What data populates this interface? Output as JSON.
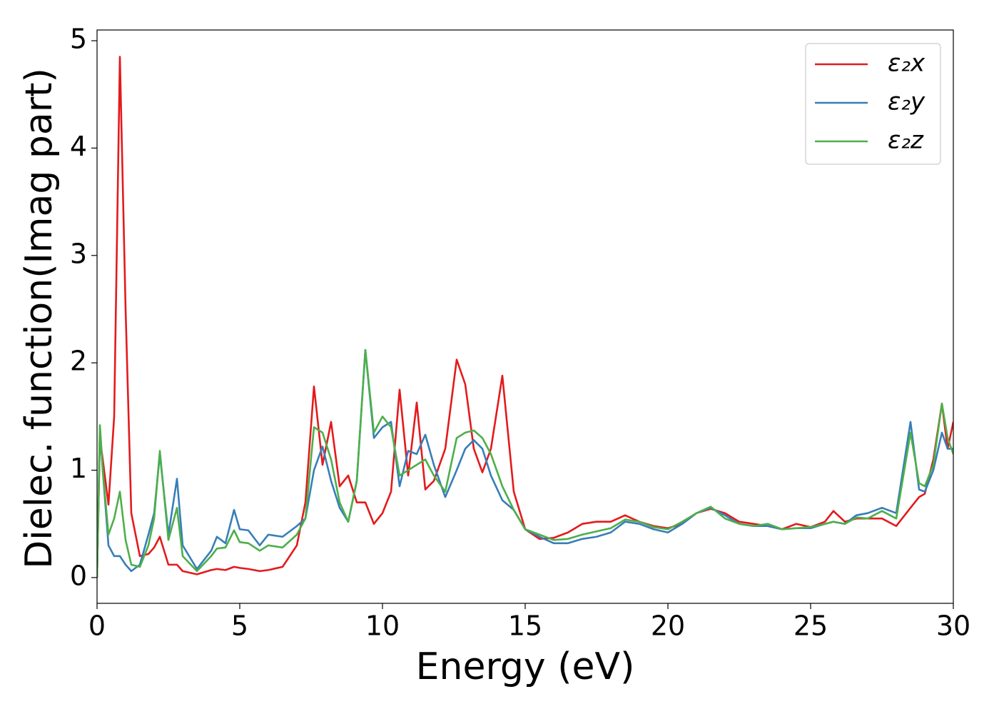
{
  "chart_data": {
    "type": "line",
    "xlabel": "Energy (eV)",
    "ylabel": "Dielec. function(Imag part)",
    "x": [
      0,
      0.1,
      0.2,
      0.4,
      0.6,
      0.8,
      1.0,
      1.2,
      1.5,
      1.8,
      2.0,
      2.2,
      2.5,
      2.8,
      3.0,
      3.5,
      4.0,
      4.2,
      4.5,
      4.8,
      5.0,
      5.3,
      5.7,
      6.0,
      6.5,
      7.0,
      7.3,
      7.6,
      7.9,
      8.2,
      8.5,
      8.8,
      9.1,
      9.4,
      9.7,
      10.0,
      10.3,
      10.6,
      10.9,
      11.2,
      11.5,
      11.8,
      12.2,
      12.6,
      12.9,
      13.2,
      13.5,
      13.8,
      14.2,
      14.6,
      15.0,
      15.5,
      16.0,
      16.5,
      17.0,
      17.5,
      18.0,
      18.5,
      19.0,
      19.5,
      20.0,
      20.5,
      21.0,
      21.5,
      22.0,
      22.5,
      23.0,
      23.5,
      24.0,
      24.5,
      25.0,
      25.5,
      25.8,
      26.2,
      26.6,
      27.0,
      27.5,
      28.0,
      28.5,
      28.8,
      29.0,
      29.3,
      29.6,
      29.8,
      30.0
    ],
    "series": [
      {
        "name": "ε₂x",
        "color": "#e41a1c",
        "values": [
          0,
          1.3,
          1.1,
          0.68,
          1.5,
          4.85,
          2.5,
          0.6,
          0.2,
          0.22,
          0.28,
          0.38,
          0.12,
          0.12,
          0.06,
          0.03,
          0.07,
          0.08,
          0.07,
          0.1,
          0.09,
          0.08,
          0.06,
          0.07,
          0.1,
          0.3,
          0.7,
          1.78,
          1.05,
          1.45,
          0.85,
          0.95,
          0.7,
          0.7,
          0.5,
          0.6,
          0.8,
          1.75,
          0.95,
          1.63,
          0.82,
          0.9,
          1.2,
          2.03,
          1.8,
          1.2,
          0.98,
          1.2,
          1.88,
          0.8,
          0.45,
          0.36,
          0.37,
          0.42,
          0.5,
          0.52,
          0.52,
          0.58,
          0.52,
          0.48,
          0.46,
          0.5,
          0.6,
          0.64,
          0.6,
          0.52,
          0.5,
          0.48,
          0.45,
          0.5,
          0.47,
          0.52,
          0.62,
          0.52,
          0.55,
          0.55,
          0.55,
          0.48,
          0.65,
          0.75,
          0.78,
          1.1,
          1.62,
          1.2,
          1.45
        ]
      },
      {
        "name": "ε₂y",
        "color": "#377eb8",
        "values": [
          0,
          1.4,
          1.0,
          0.3,
          0.2,
          0.2,
          0.12,
          0.06,
          0.12,
          0.4,
          0.6,
          1.15,
          0.4,
          0.92,
          0.3,
          0.08,
          0.25,
          0.38,
          0.32,
          0.63,
          0.45,
          0.44,
          0.3,
          0.4,
          0.38,
          0.48,
          0.55,
          1.0,
          1.22,
          0.9,
          0.65,
          0.52,
          0.9,
          2.12,
          1.3,
          1.4,
          1.45,
          0.85,
          1.18,
          1.15,
          1.33,
          1.05,
          0.75,
          1.0,
          1.2,
          1.28,
          1.2,
          0.95,
          0.72,
          0.63,
          0.45,
          0.38,
          0.32,
          0.32,
          0.36,
          0.38,
          0.42,
          0.52,
          0.5,
          0.45,
          0.42,
          0.5,
          0.6,
          0.65,
          0.58,
          0.5,
          0.48,
          0.48,
          0.45,
          0.46,
          0.46,
          0.5,
          0.52,
          0.5,
          0.58,
          0.6,
          0.65,
          0.6,
          1.45,
          0.82,
          0.8,
          1.0,
          1.35,
          1.2,
          1.2
        ]
      },
      {
        "name": "ε₂z",
        "color": "#4daf4a",
        "values": [
          0,
          1.42,
          1.0,
          0.4,
          0.55,
          0.8,
          0.35,
          0.12,
          0.1,
          0.3,
          0.55,
          1.18,
          0.35,
          0.65,
          0.2,
          0.06,
          0.2,
          0.27,
          0.28,
          0.44,
          0.33,
          0.32,
          0.25,
          0.3,
          0.28,
          0.4,
          0.55,
          1.4,
          1.35,
          1.1,
          0.7,
          0.52,
          0.9,
          2.12,
          1.35,
          1.5,
          1.4,
          0.95,
          1.0,
          1.05,
          1.1,
          0.95,
          0.8,
          1.3,
          1.35,
          1.37,
          1.3,
          1.15,
          0.85,
          0.63,
          0.45,
          0.4,
          0.35,
          0.36,
          0.4,
          0.43,
          0.46,
          0.54,
          0.52,
          0.47,
          0.45,
          0.52,
          0.6,
          0.66,
          0.55,
          0.5,
          0.48,
          0.5,
          0.45,
          0.46,
          0.47,
          0.5,
          0.52,
          0.5,
          0.56,
          0.55,
          0.62,
          0.55,
          1.35,
          0.88,
          0.85,
          1.05,
          1.62,
          1.3,
          1.15
        ]
      }
    ],
    "xlim": [
      0,
      30
    ],
    "xticks": [
      0,
      5,
      10,
      15,
      20,
      25,
      30
    ],
    "ylim": [
      -0.24,
      5.1
    ],
    "yticks": [
      0,
      1,
      2,
      3,
      4,
      5
    ],
    "legend": "upper right",
    "grid": false
  }
}
